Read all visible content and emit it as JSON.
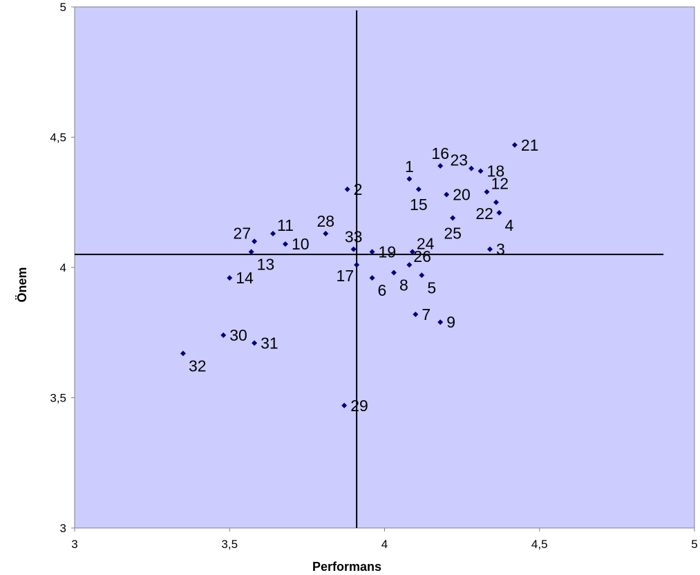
{
  "chart_data": {
    "type": "scatter",
    "title": "",
    "xlabel": "Performans",
    "ylabel": "Önem",
    "xlim": [
      3,
      5
    ],
    "ylim": [
      3,
      5
    ],
    "x_ticks": [
      "3",
      "3,5",
      "4",
      "4,5",
      "5"
    ],
    "y_ticks": [
      "3",
      "3,5",
      "4",
      "4,5",
      "5"
    ],
    "x_tick_values": [
      3,
      3.5,
      4,
      4.5,
      5
    ],
    "y_tick_values": [
      3,
      3.5,
      4,
      4.5,
      5
    ],
    "reference_lines": {
      "x": 3.91,
      "y": 4.05
    },
    "legend": "none",
    "grid": false,
    "colors": {
      "plot_bg": "#ccccff",
      "marker": "#000080",
      "axis": "#808080",
      "ref_line": "#000000"
    },
    "points": [
      {
        "label": "1",
        "x": 4.08,
        "y": 4.34,
        "lpos": "n"
      },
      {
        "label": "2",
        "x": 3.88,
        "y": 4.3,
        "lpos": "e"
      },
      {
        "label": "3",
        "x": 4.34,
        "y": 4.07,
        "lpos": "e"
      },
      {
        "label": "4",
        "x": 4.37,
        "y": 4.21,
        "lpos": "se"
      },
      {
        "label": "5",
        "x": 4.12,
        "y": 3.97,
        "lpos": "se"
      },
      {
        "label": "6",
        "x": 3.96,
        "y": 3.96,
        "lpos": "se"
      },
      {
        "label": "7",
        "x": 4.1,
        "y": 3.82,
        "lpos": "e"
      },
      {
        "label": "8",
        "x": 4.03,
        "y": 3.98,
        "lpos": "se"
      },
      {
        "label": "9",
        "x": 4.18,
        "y": 3.79,
        "lpos": "e"
      },
      {
        "label": "10",
        "x": 3.68,
        "y": 4.09,
        "lpos": "e"
      },
      {
        "label": "11",
        "x": 3.64,
        "y": 4.13,
        "lpos": "ne"
      },
      {
        "label": "12",
        "x": 4.33,
        "y": 4.29,
        "lpos": "ne"
      },
      {
        "label": "13",
        "x": 3.57,
        "y": 4.06,
        "lpos": "se"
      },
      {
        "label": "14",
        "x": 3.5,
        "y": 3.96,
        "lpos": "e"
      },
      {
        "label": "15",
        "x": 4.11,
        "y": 4.3,
        "lpos": "s"
      },
      {
        "label": "16",
        "x": 4.18,
        "y": 4.39,
        "lpos": "n"
      },
      {
        "label": "17",
        "x": 3.91,
        "y": 4.01,
        "lpos": "sw"
      },
      {
        "label": "18",
        "x": 4.31,
        "y": 4.37,
        "lpos": "e"
      },
      {
        "label": "19",
        "x": 3.96,
        "y": 4.06,
        "lpos": "e"
      },
      {
        "label": "20",
        "x": 4.2,
        "y": 4.28,
        "lpos": "e"
      },
      {
        "label": "21",
        "x": 4.42,
        "y": 4.47,
        "lpos": "e"
      },
      {
        "label": "22",
        "x": 4.36,
        "y": 4.25,
        "lpos": "sw"
      },
      {
        "label": "23",
        "x": 4.28,
        "y": 4.38,
        "lpos": "nw"
      },
      {
        "label": "24",
        "x": 4.09,
        "y": 4.06,
        "lpos": "ne"
      },
      {
        "label": "25",
        "x": 4.22,
        "y": 4.19,
        "lpos": "s"
      },
      {
        "label": "26",
        "x": 4.08,
        "y": 4.01,
        "lpos": "ne"
      },
      {
        "label": "27",
        "x": 3.58,
        "y": 4.1,
        "lpos": "nw"
      },
      {
        "label": "28",
        "x": 3.81,
        "y": 4.13,
        "lpos": "n"
      },
      {
        "label": "29",
        "x": 3.87,
        "y": 3.47,
        "lpos": "e"
      },
      {
        "label": "30",
        "x": 3.48,
        "y": 3.74,
        "lpos": "e"
      },
      {
        "label": "31",
        "x": 3.58,
        "y": 3.71,
        "lpos": "e"
      },
      {
        "label": "32",
        "x": 3.35,
        "y": 3.67,
        "lpos": "se"
      },
      {
        "label": "33",
        "x": 3.9,
        "y": 4.07,
        "lpos": "n"
      }
    ]
  }
}
